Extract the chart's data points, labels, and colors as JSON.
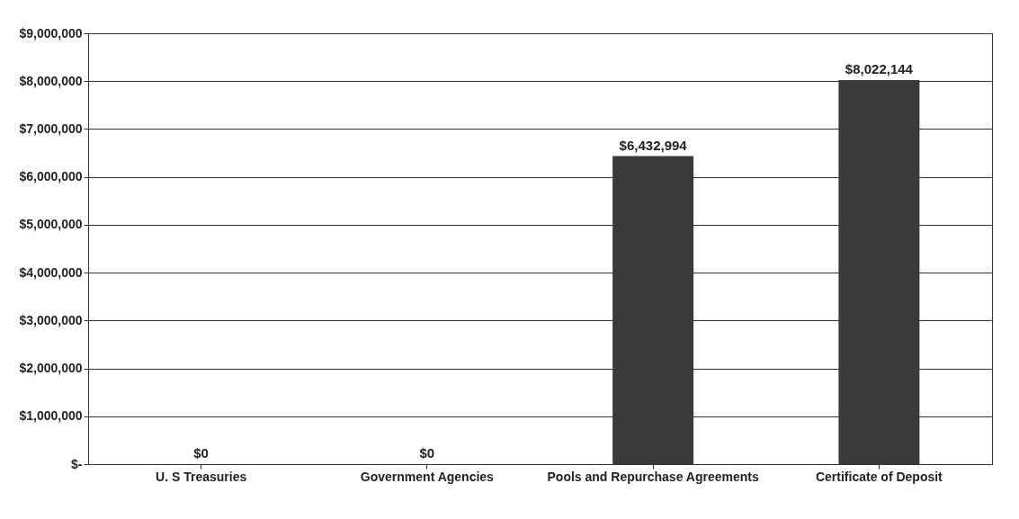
{
  "chart_data": {
    "type": "bar",
    "categories": [
      "U. S Treasuries",
      "Government Agencies",
      "Pools and Repurchase Agreements",
      "Certificate of Deposit"
    ],
    "values": [
      0,
      0,
      6432994,
      8022144
    ],
    "color": "#3a3a3a",
    "value_labels": [
      "$0",
      "$0",
      "$6,432,994",
      "$8,022,144"
    ],
    "ylim": [
      0,
      9000000
    ],
    "yticks": [
      {
        "value": 0,
        "label": "$-"
      },
      {
        "value": 1000000,
        "label": "$1,000,000"
      },
      {
        "value": 2000000,
        "label": "$2,000,000"
      },
      {
        "value": 3000000,
        "label": "$3,000,000"
      },
      {
        "value": 4000000,
        "label": "$4,000,000"
      },
      {
        "value": 5000000,
        "label": "$5,000,000"
      },
      {
        "value": 6000000,
        "label": "$6,000,000"
      },
      {
        "value": 7000000,
        "label": "$7,000,000"
      },
      {
        "value": 8000000,
        "label": "$8,000,000"
      },
      {
        "value": 9000000,
        "label": "$9,000,000"
      }
    ],
    "grid": "y"
  }
}
